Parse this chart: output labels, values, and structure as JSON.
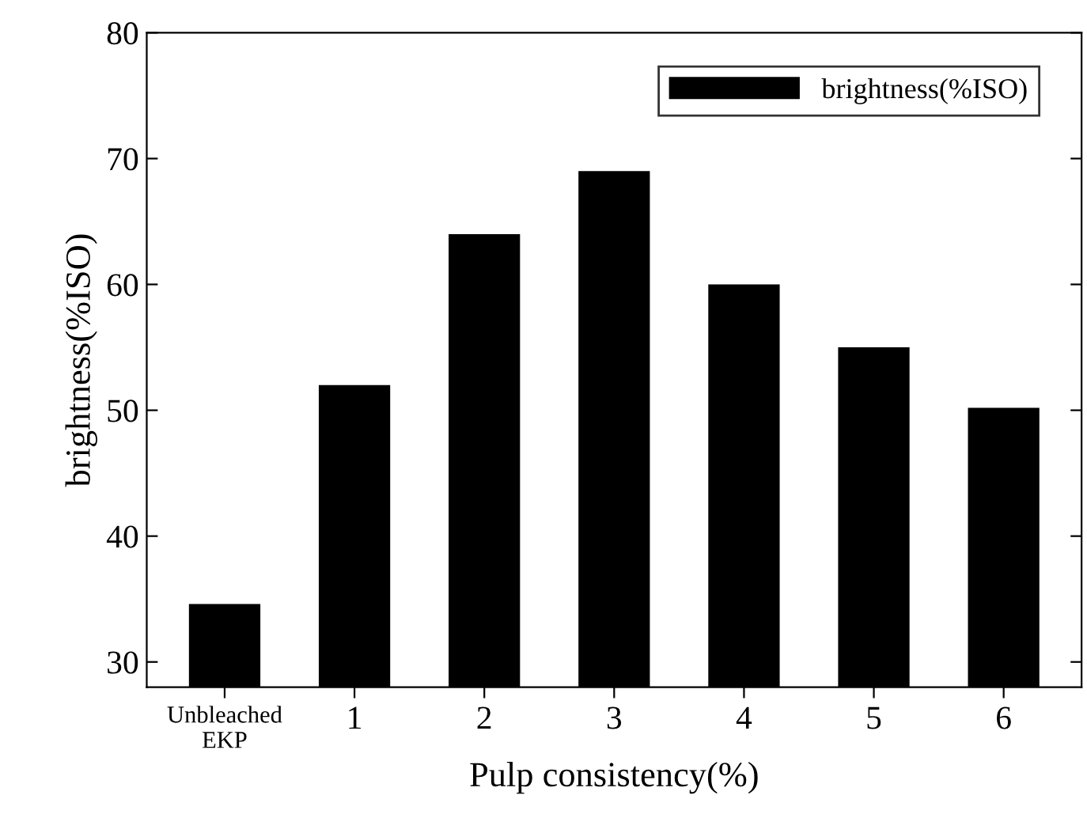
{
  "chart_data": {
    "type": "bar",
    "xlabel": "Pulp consistency(%)",
    "ylabel": "brightness(%ISO)",
    "categories": [
      "Unbleached\nEKP",
      "1",
      "2",
      "3",
      "4",
      "5",
      "6"
    ],
    "series": [
      {
        "name": "brightness(%ISO)",
        "color": "#000000",
        "values": [
          34.6,
          52,
          64,
          69,
          60,
          55,
          50.2
        ]
      }
    ],
    "ylim": [
      28,
      80
    ],
    "yticks": [
      30,
      40,
      50,
      60,
      70,
      80
    ],
    "legend": "top right",
    "grid": false
  }
}
